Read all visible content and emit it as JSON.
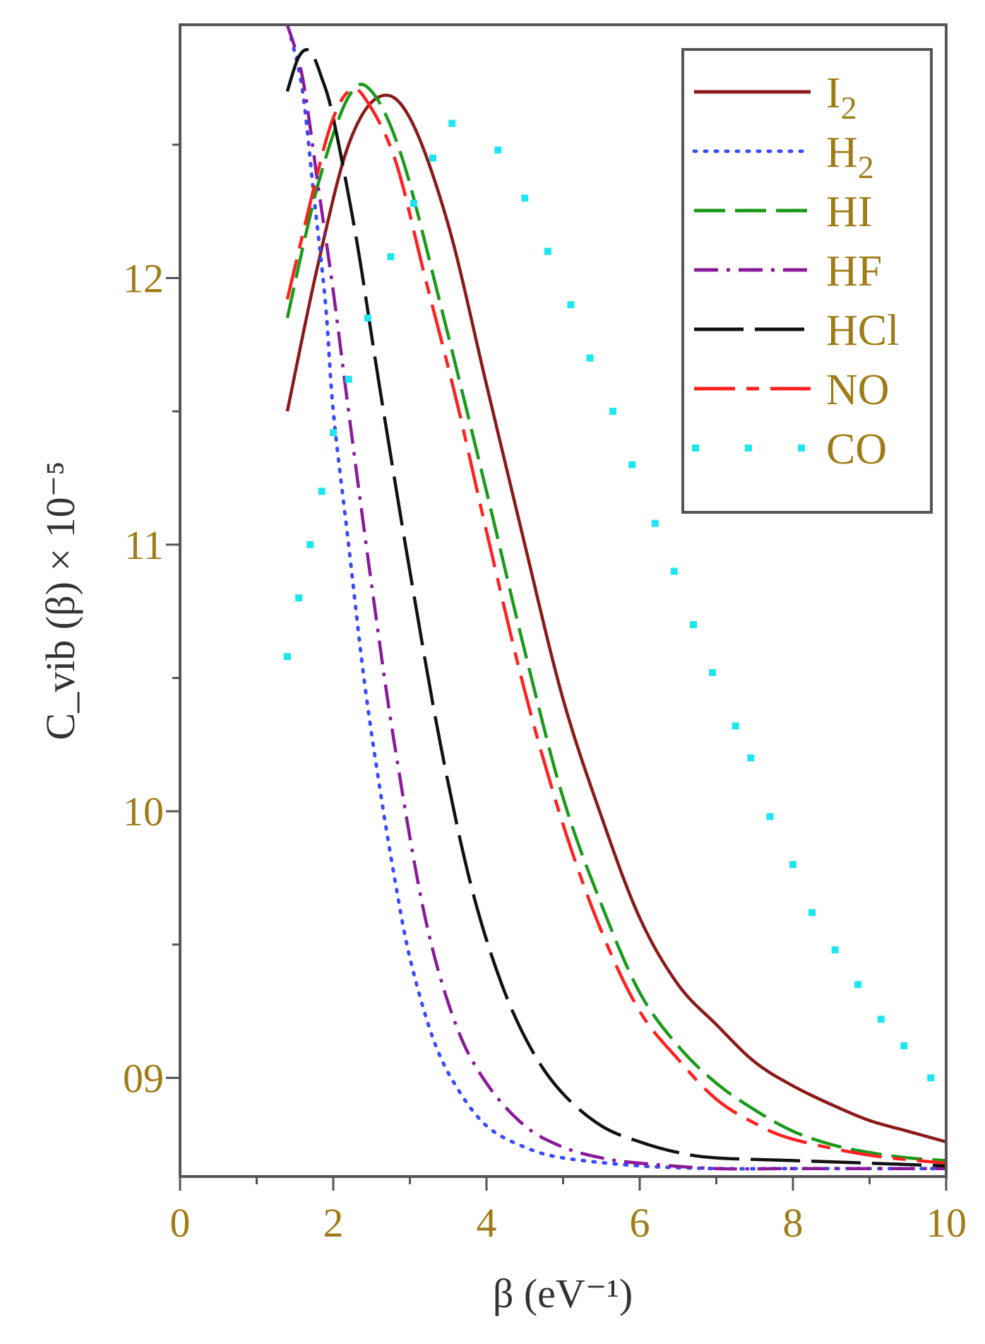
{
  "chart_data": {
    "type": "line",
    "title": "",
    "xlabel": "β (eV⁻¹)",
    "ylabel": "C_vib (β) × 10⁻⁵",
    "xlim": [
      0,
      10
    ],
    "ylim": [
      8.63,
      12.95
    ],
    "x_ticks": [
      {
        "value": 0,
        "label": "0"
      },
      {
        "value": 2,
        "label": "2"
      },
      {
        "value": 4,
        "label": "4"
      },
      {
        "value": 6,
        "label": "6"
      },
      {
        "value": 8,
        "label": "8"
      },
      {
        "value": 10,
        "label": "10"
      }
    ],
    "y_ticks": [
      {
        "value": 9,
        "label": "09"
      },
      {
        "value": 10,
        "label": "10"
      },
      {
        "value": 11,
        "label": "11"
      },
      {
        "value": 12,
        "label": "12"
      }
    ],
    "grid": false,
    "legend_position": "top-right",
    "series": [
      {
        "name": "I2",
        "label_main": "I",
        "label_sub": "2",
        "color": "#8b1a1a",
        "style": "solid",
        "x": [
          1.4,
          1.8,
          2.2,
          2.6,
          3.0,
          3.5,
          4.0,
          4.5,
          5.0,
          5.5,
          6.0,
          6.5,
          7.0,
          7.5,
          8.0,
          8.5,
          9.0,
          9.5,
          10.0
        ],
        "y": [
          11.5,
          12.05,
          12.5,
          12.68,
          12.6,
          12.2,
          11.6,
          11.0,
          10.42,
          9.98,
          9.6,
          9.35,
          9.2,
          9.06,
          8.97,
          8.9,
          8.84,
          8.8,
          8.76
        ]
      },
      {
        "name": "H2",
        "label_main": "H",
        "label_sub": "2",
        "color": "#3a4bff",
        "style": "dotted",
        "x": [
          1.45,
          1.6,
          1.75,
          1.9,
          2.0,
          2.2,
          2.4,
          2.6,
          2.8,
          3.0,
          3.3,
          3.6,
          4.0,
          4.5,
          5.0,
          6.0,
          7.0,
          8.0,
          9.0,
          10.0
        ],
        "y": [
          12.9,
          12.7,
          12.3,
          11.9,
          11.5,
          11.0,
          10.5,
          10.1,
          9.75,
          9.45,
          9.15,
          8.97,
          8.82,
          8.74,
          8.7,
          8.67,
          8.66,
          8.66,
          8.66,
          8.66
        ]
      },
      {
        "name": "HI",
        "label_main": "HI",
        "label_sub": "",
        "color": "#1a9a1a",
        "style": "dashed",
        "x": [
          1.4,
          1.8,
          2.2,
          2.5,
          2.9,
          3.4,
          4.0,
          4.5,
          5.0,
          5.5,
          6.0,
          6.5,
          7.0,
          7.5,
          8.0,
          8.5,
          9.0,
          9.5,
          10.0
        ],
        "y": [
          11.85,
          12.35,
          12.68,
          12.7,
          12.45,
          11.9,
          11.2,
          10.6,
          10.05,
          9.65,
          9.32,
          9.12,
          8.98,
          8.88,
          8.8,
          8.75,
          8.72,
          8.7,
          8.69
        ]
      },
      {
        "name": "HF",
        "label_main": "HF",
        "label_sub": "",
        "color": "#8a1a9a",
        "style": "dash-dot",
        "x": [
          1.4,
          1.6,
          1.8,
          2.0,
          2.2,
          2.5,
          2.8,
          3.2,
          3.6,
          4.0,
          4.5,
          5.0,
          5.5,
          6.0,
          7.0,
          8.0,
          9.0,
          10.0
        ],
        "y": [
          12.95,
          12.75,
          12.35,
          11.95,
          11.5,
          10.85,
          10.25,
          9.6,
          9.2,
          8.98,
          8.82,
          8.74,
          8.7,
          8.68,
          8.66,
          8.66,
          8.66,
          8.66
        ]
      },
      {
        "name": "HCl",
        "label_main": "HCl",
        "label_sub": "",
        "color": "#111111",
        "style": "long-dash",
        "x": [
          1.4,
          1.55,
          1.7,
          1.85,
          2.0,
          2.3,
          2.6,
          3.0,
          3.4,
          3.8,
          4.2,
          4.6,
          5.0,
          5.5,
          6.0,
          6.5,
          7.0,
          8.0,
          9.0,
          10.0
        ],
        "y": [
          12.7,
          12.83,
          12.85,
          12.75,
          12.6,
          12.15,
          11.6,
          10.9,
          10.25,
          9.72,
          9.35,
          9.1,
          8.94,
          8.82,
          8.76,
          8.72,
          8.7,
          8.69,
          8.68,
          8.67
        ]
      },
      {
        "name": "NO",
        "label_main": "NO",
        "label_sub": "",
        "color": "#ff2020",
        "style": "long-dash-short",
        "x": [
          1.4,
          1.8,
          2.0,
          2.2,
          2.4,
          2.8,
          3.2,
          3.6,
          4.0,
          4.5,
          5.0,
          5.5,
          6.0,
          6.5,
          7.0,
          7.5,
          8.0,
          9.0,
          10.0
        ],
        "y": [
          11.92,
          12.4,
          12.6,
          12.7,
          12.68,
          12.45,
          12.0,
          11.55,
          11.05,
          10.45,
          9.95,
          9.55,
          9.25,
          9.07,
          8.92,
          8.83,
          8.77,
          8.71,
          8.68
        ]
      },
      {
        "name": "CO",
        "label_main": "CO",
        "label_sub": "",
        "color": "#1ee6f0",
        "style": "sparse-dot",
        "x": [
          1.4,
          1.55,
          1.7,
          1.85,
          2.0,
          2.2,
          2.45,
          2.75,
          3.05,
          3.3,
          3.55,
          4.15,
          4.5,
          4.8,
          5.1,
          5.35,
          5.65,
          5.9,
          6.2,
          6.45,
          6.7,
          6.95,
          7.25,
          7.45,
          7.7,
          8.0,
          8.25,
          8.55,
          8.85,
          9.15,
          9.45,
          9.8
        ],
        "y": [
          10.58,
          10.8,
          11.0,
          11.2,
          11.42,
          11.62,
          11.85,
          12.08,
          12.28,
          12.45,
          12.58,
          12.48,
          12.3,
          12.1,
          11.9,
          11.7,
          11.5,
          11.3,
          11.08,
          10.9,
          10.7,
          10.52,
          10.32,
          10.2,
          9.98,
          9.8,
          9.62,
          9.48,
          9.35,
          9.22,
          9.12,
          9.0
        ]
      }
    ]
  }
}
